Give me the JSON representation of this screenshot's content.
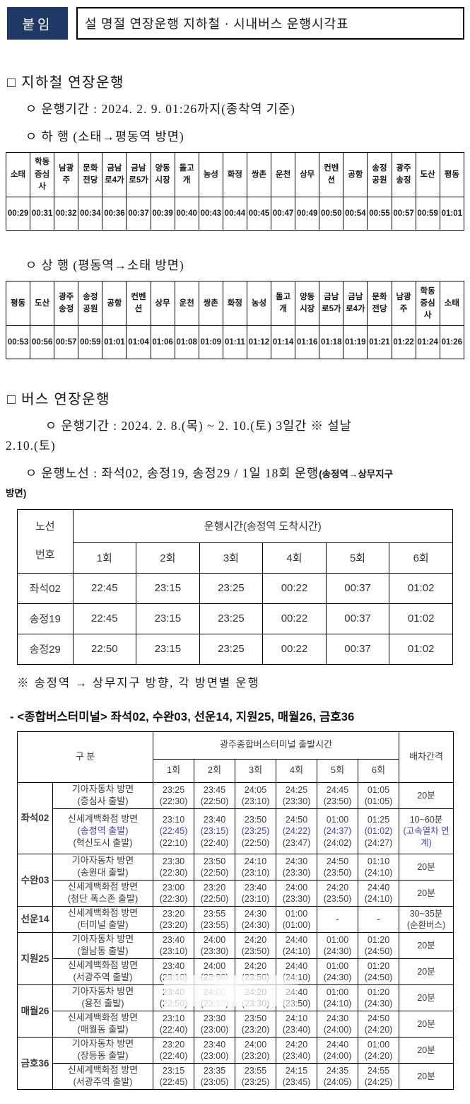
{
  "header": {
    "badge": "붙임",
    "title": "설 명절 연장운행 지하철 · 시내버스 운행시각표"
  },
  "subway": {
    "heading": "□ 지하철 연장운행",
    "period": "ㅇ 운행기간 : 2024. 2. 9. 01:26까지(종착역 기준)",
    "down": {
      "heading": "ㅇ 하 행 (소태→평동역 방면)",
      "stations": [
        "소태",
        "학동증심사",
        "남광주",
        "문화전당",
        "금남로4가",
        "금남로5가",
        "양동시장",
        "돌고개",
        "농성",
        "화정",
        "쌍촌",
        "운천",
        "상무",
        "컨벤션",
        "공항",
        "송정공원",
        "광주송정",
        "도산",
        "평동"
      ],
      "times": [
        "00:29",
        "00:31",
        "00:32",
        "00:34",
        "00:36",
        "00:37",
        "00:39",
        "00:40",
        "00:43",
        "00:44",
        "00:45",
        "00:47",
        "00:49",
        "00:50",
        "00:54",
        "00:55",
        "00:57",
        "00:59",
        "01:01"
      ]
    },
    "up": {
      "heading": "ㅇ 상 행 (평동역→소태 방면)",
      "stations": [
        "평동",
        "도산",
        "광주송정",
        "송정공원",
        "공항",
        "컨벤션",
        "상무",
        "운천",
        "쌍촌",
        "화정",
        "농성",
        "돌고개",
        "양동시장",
        "금남로5가",
        "금남로4가",
        "문화전당",
        "남광주",
        "학동증심사",
        "소태"
      ],
      "times": [
        "00:53",
        "00:56",
        "00:57",
        "00:59",
        "01:01",
        "01:04",
        "01:06",
        "01:08",
        "01:09",
        "01:11",
        "01:12",
        "01:14",
        "01:16",
        "01:18",
        "01:19",
        "01:21",
        "01:22",
        "01:24",
        "01:26"
      ]
    }
  },
  "bus": {
    "heading": "□ 버스 연장운행",
    "period_line1": "ㅇ 운행기간 : 2024. 2. 8.(목) ~ 2. 10.(토) 3일간 ※ 설날",
    "period_line2": "2.10.(토)",
    "route_big": "ㅇ 운행노선 : 좌석02, 송정19, 송정29 / 1일 18회 운행",
    "route_small_1": "(송정역→상무지구",
    "route_small_2": "방면)",
    "table1": {
      "route_header": [
        "노선",
        "번호"
      ],
      "time_header": "운행시간(송정역 도착시간)",
      "trip_headers": [
        "1회",
        "2회",
        "3회",
        "4회",
        "5회",
        "6회"
      ],
      "rows": [
        {
          "route": "좌석02",
          "times": [
            "22:45",
            "23:15",
            "23:25",
            "00:22",
            "00:37",
            "01:02"
          ]
        },
        {
          "route": "송정19",
          "times": [
            "22:45",
            "23:15",
            "23:25",
            "00:22",
            "00:37",
            "01:02"
          ]
        },
        {
          "route": "송정29",
          "times": [
            "22:50",
            "23:15",
            "23:25",
            "00:22",
            "00:37",
            "01:02"
          ]
        }
      ],
      "note": "※ 송정역 → 상무지구 방향, 각 방면별 운행"
    },
    "terminal": {
      "title": "- <종합버스터미널> 좌석02, 수완03, 선운14, 지원25, 매월26, 금호36",
      "group_header": "구  분",
      "departure_header": "광주종합버스터미널 출발시간",
      "trip_headers": [
        "1회",
        "2회",
        "3회",
        "4회",
        "5회",
        "6회"
      ],
      "interval_header": "배차간격",
      "groups": [
        {
          "route": "좌석02",
          "rows": [
            {
              "direction": [
                "기아자동차 방면",
                "(증심사 출발)"
              ],
              "cells": [
                [
                  "23:25",
                  "(22:30)"
                ],
                [
                  "23:45",
                  "(22:50)"
                ],
                [
                  "24:05",
                  "(23:10)"
                ],
                [
                  "24:25",
                  "(23:30)"
                ],
                [
                  "24:45",
                  "(23:50)"
                ],
                [
                  "01:05",
                  "(01:05)"
                ]
              ],
              "interval": [
                "20분"
              ]
            },
            {
              "direction": [
                "신세계백화점 방면",
                "(송정역 출발)",
                "(혁신도시 출발)"
              ],
              "cells": [
                [
                  "23:10",
                  "(22:45)",
                  "(22:10)"
                ],
                [
                  "23:40",
                  "(23:15)",
                  "(22:40)"
                ],
                [
                  "23:50",
                  "(23:25)",
                  "(22:50)"
                ],
                [
                  "24:50",
                  "(24:22)",
                  "(23:47)"
                ],
                [
                  "01:00",
                  "(24:37)",
                  "(24:02)"
                ],
                [
                  "01:25",
                  "(01:02)",
                  "(24:27)"
                ]
              ],
              "interval": [
                "10~60분",
                "(고속열차 연계)"
              ],
              "blue_line": 1
            }
          ]
        },
        {
          "route": "수완03",
          "rows": [
            {
              "direction": [
                "기아자동차 방면",
                "(송원대 출발)"
              ],
              "cells": [
                [
                  "23:30",
                  "(22:30)"
                ],
                [
                  "23:50",
                  "(22:50)"
                ],
                [
                  "24:10",
                  "(23:10)"
                ],
                [
                  "24:30",
                  "(23:30)"
                ],
                [
                  "24:50",
                  "(23:50)"
                ],
                [
                  "01:10",
                  "(24:10)"
                ]
              ],
              "interval": [
                "20분"
              ]
            },
            {
              "direction": [
                "신세계백화점 방면",
                "(첨단 폭스존 출발)"
              ],
              "cells": [
                [
                  "23:00",
                  "(22:30)"
                ],
                [
                  "23:20",
                  "(22:50)"
                ],
                [
                  "23:40",
                  "(23:10)"
                ],
                [
                  "24:00",
                  "(23:30)"
                ],
                [
                  "24:20",
                  "(23:50)"
                ],
                [
                  "24:40",
                  "(24:10)"
                ]
              ],
              "interval": [
                "20분"
              ]
            }
          ]
        },
        {
          "route": "선운14",
          "rows": [
            {
              "direction": [
                "신세계백화점 방면",
                "(터미널 출발)"
              ],
              "cells": [
                [
                  "23:20",
                  "(23:20)"
                ],
                [
                  "23:55",
                  "(23:55)"
                ],
                [
                  "24:30",
                  "(24:30)"
                ],
                [
                  "01:00",
                  "(01:00)"
                ],
                [
                  "-"
                ],
                [
                  "-"
                ]
              ],
              "interval": [
                "30~35분",
                "(순환버스)"
              ]
            }
          ]
        },
        {
          "route": "지원25",
          "rows": [
            {
              "direction": [
                "기아자동차 방면",
                "(월남동 출발)"
              ],
              "cells": [
                [
                  "23:40",
                  "(23:10)"
                ],
                [
                  "24:00",
                  "(23:30)"
                ],
                [
                  "24:20",
                  "(23:50)"
                ],
                [
                  "24:40",
                  "(24:10)"
                ],
                [
                  "01:00",
                  "(24:30)"
                ],
                [
                  "01:20",
                  "(24:50)"
                ]
              ],
              "interval": [
                "20분"
              ]
            },
            {
              "direction": [
                "신세계백화점 방면",
                "(서광주역 출발)"
              ],
              "cells": [
                [
                  "23:40",
                  "(23:10)"
                ],
                [
                  "24:00",
                  "(23:30)"
                ],
                [
                  "24:20",
                  "(23:50)"
                ],
                [
                  "24:40",
                  "(24:10)"
                ],
                [
                  "01:00",
                  "(24:30)"
                ],
                [
                  "01:20",
                  "(24:50)"
                ]
              ],
              "interval": [
                "20분"
              ]
            }
          ]
        },
        {
          "route": "매월26",
          "rows": [
            {
              "direction": [
                "기아자동차 방면",
                "(용전 출발)"
              ],
              "cells": [
                [
                  "23:40",
                  "(22:50)"
                ],
                [
                  "24:00",
                  "(23:10)"
                ],
                [
                  "24:20",
                  "(23:30)"
                ],
                [
                  "24:40",
                  "(23:50)"
                ],
                [
                  "01:00",
                  "(24:10)"
                ],
                [
                  "01:20",
                  "(24:30)"
                ]
              ],
              "interval": [
                "20분"
              ]
            },
            {
              "direction": [
                "신세계백화점 방면",
                "(매월동 출발)"
              ],
              "cells": [
                [
                  "23:10",
                  "(22:40)"
                ],
                [
                  "23:30",
                  "(23:00)"
                ],
                [
                  "23:50",
                  "(23:20)"
                ],
                [
                  "24:10",
                  "(23:40)"
                ],
                [
                  "24:30",
                  "(24:00)"
                ],
                [
                  "24:50",
                  "(24:20)"
                ]
              ],
              "interval": [
                "20분"
              ]
            }
          ]
        },
        {
          "route": "금호36",
          "rows": [
            {
              "direction": [
                "기아자동차 방면",
                "(장등동 출발)"
              ],
              "cells": [
                [
                  "23:20",
                  "(22:40)"
                ],
                [
                  "23:40",
                  "(23:00)"
                ],
                [
                  "24:00",
                  "(23:20)"
                ],
                [
                  "24:20",
                  "(23:40)"
                ],
                [
                  "24:40",
                  "(24:00)"
                ],
                [
                  "01:00",
                  "(24:20)"
                ]
              ],
              "interval": [
                "20분"
              ]
            },
            {
              "direction": [
                "신세계백화점 방면",
                "(서광주역 출발)"
              ],
              "cells": [
                [
                  "23:15",
                  "(22:45)"
                ],
                [
                  "23:35",
                  "(23:05)"
                ],
                [
                  "23:55",
                  "(23:25)"
                ],
                [
                  "24:15",
                  "(23:45)"
                ],
                [
                  "24:35",
                  "(24:05)"
                ],
                [
                  "24:55",
                  "(24:25)"
                ]
              ],
              "interval": [
                "20분"
              ]
            }
          ]
        }
      ]
    }
  }
}
